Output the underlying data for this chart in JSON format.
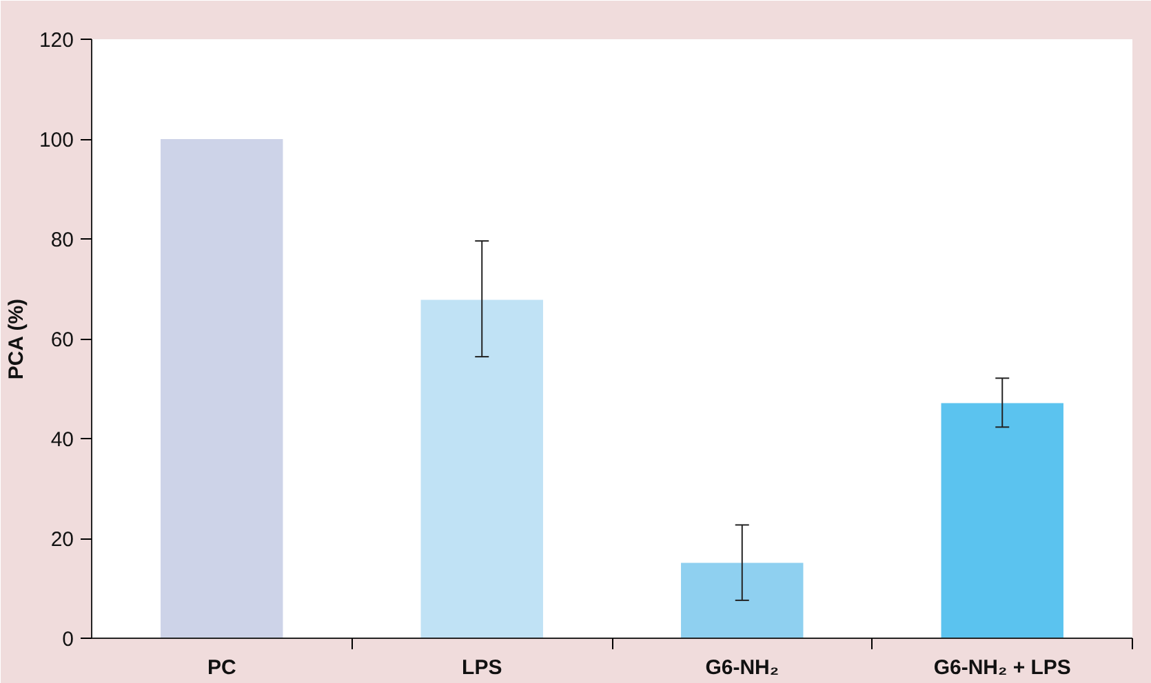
{
  "chart_data": {
    "type": "bar",
    "ylabel": "PCA (%)",
    "categories": [
      "PC",
      "LPS",
      "G6-NH₂",
      "G6-NH₂ + LPS"
    ],
    "values": [
      100,
      67.8,
      15.1,
      47.1
    ],
    "colors": [
      "#cdd3e8",
      "#c0e2f5",
      "#8fd0f0",
      "#5bc3ef"
    ],
    "errors": [
      null,
      [
        56.4,
        79.6
      ],
      [
        7.6,
        22.7
      ],
      [
        42.3,
        52.1
      ]
    ],
    "ylim": [
      0,
      120
    ],
    "yticks": [
      0,
      20,
      40,
      60,
      80,
      100,
      120
    ],
    "grid": false
  }
}
